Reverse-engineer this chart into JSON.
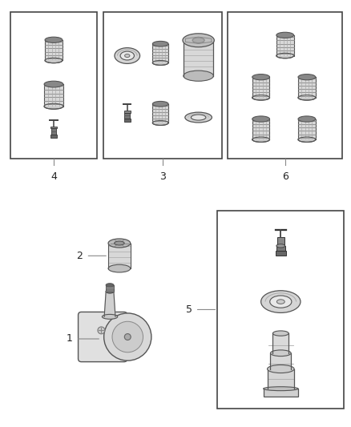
{
  "bg_color": "#ffffff",
  "border_color": "#444444",
  "text_color": "#222222",
  "fig_width": 4.38,
  "fig_height": 5.33,
  "dpi": 100,
  "cap_face": "#e0e0e0",
  "cap_dark": "#555555",
  "cap_top": "#999999",
  "cap_rib": "#444444"
}
